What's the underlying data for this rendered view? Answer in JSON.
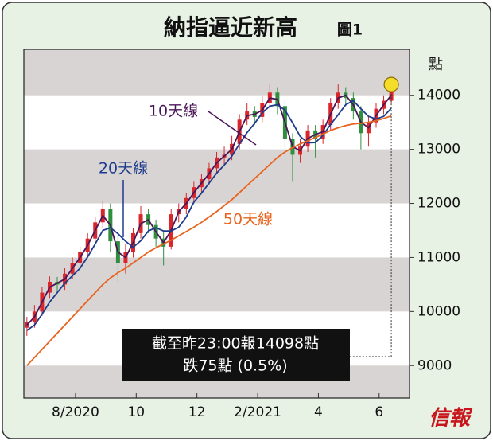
{
  "chart_data": {
    "type": "candlestick",
    "title": "納指逼近新高",
    "figure_label": "圖1",
    "y_unit": "點",
    "x": [
      6.4,
      6.65,
      6.9,
      7.15,
      7.4,
      7.65,
      7.9,
      8.15,
      8.4,
      8.65,
      8.9,
      9.15,
      9.4,
      9.65,
      9.9,
      10.15,
      10.4,
      10.65,
      10.9,
      11.15,
      11.4,
      11.65,
      11.9,
      12.15,
      12.4,
      12.65,
      12.9,
      13.15,
      13.4,
      13.65,
      13.9,
      14.15,
      14.4,
      14.65,
      14.9,
      15.15,
      15.4,
      15.65,
      15.9,
      16.15,
      16.4,
      16.65,
      16.9,
      17.15,
      17.4,
      17.65,
      17.9,
      18.15,
      18.4
    ],
    "open": [
      9700,
      9800,
      10000,
      10350,
      10550,
      10500,
      10700,
      10900,
      11100,
      11350,
      11650,
      11900,
      11300,
      10900,
      11100,
      11450,
      11800,
      11600,
      11350,
      11200,
      11800,
      11900,
      12100,
      12300,
      12450,
      12650,
      12850,
      12900,
      13100,
      13550,
      13700,
      13600,
      13850,
      14050,
      13800,
      13200,
      12900,
      13050,
      13350,
      13200,
      13450,
      13850,
      14050,
      13950,
      13700,
      13300,
      13500,
      13750,
      13900
    ],
    "high": [
      9900,
      10120,
      10450,
      10650,
      10640,
      10800,
      11000,
      11200,
      11450,
      11750,
      12050,
      12000,
      11400,
      11250,
      11550,
      11950,
      11900,
      11700,
      11500,
      11900,
      12000,
      12200,
      12400,
      12550,
      12750,
      12950,
      13050,
      13250,
      13650,
      13850,
      13800,
      14000,
      14200,
      14150,
      13900,
      13300,
      13200,
      13450,
      13450,
      13550,
      13950,
      14200,
      14150,
      14050,
      13800,
      13600,
      13850,
      14000,
      14200
    ],
    "low": [
      9550,
      9700,
      9920,
      10250,
      10350,
      10400,
      10600,
      10800,
      11000,
      11250,
      11550,
      11100,
      10550,
      10700,
      11000,
      11350,
      11450,
      11200,
      10850,
      11150,
      11650,
      11800,
      12000,
      12200,
      12350,
      12550,
      12700,
      12800,
      13000,
      13450,
      13450,
      13500,
      13750,
      13650,
      13000,
      12400,
      12750,
      12950,
      12850,
      13100,
      13350,
      13750,
      13800,
      13550,
      13000,
      13050,
      13400,
      13650,
      13850
    ],
    "close": [
      9800,
      10000,
      10350,
      10550,
      10500,
      10700,
      10900,
      11100,
      11350,
      11650,
      11900,
      11300,
      10900,
      11100,
      11450,
      11800,
      11600,
      11350,
      11200,
      11800,
      11900,
      12100,
      12300,
      12450,
      12650,
      12850,
      12900,
      13100,
      13550,
      13700,
      13600,
      13850,
      14050,
      13800,
      13200,
      12900,
      13050,
      13350,
      13200,
      13450,
      13850,
      14050,
      13950,
      13700,
      13300,
      13500,
      13750,
      13900,
      14100
    ],
    "up_color": "#d8262b",
    "down_color": "#2f8f3e",
    "series": [
      {
        "name": "10天線",
        "color": "#4a1658",
        "values": [
          9750,
          9900,
          10175,
          10450,
          10525,
          10600,
          10800,
          11000,
          11225,
          11500,
          11775,
          11600,
          11100,
          11000,
          11275,
          11625,
          11700,
          11475,
          11275,
          11500,
          11850,
          12000,
          12200,
          12375,
          12550,
          12750,
          12875,
          13000,
          13325,
          13625,
          13650,
          13725,
          13950,
          13925,
          13500,
          13050,
          12975,
          13200,
          13275,
          13325,
          13650,
          13950,
          14000,
          13825,
          13500,
          13400,
          13625,
          13825,
          14000
        ]
      },
      {
        "name": "20天線",
        "color": "#1d3c8c",
        "values": [
          9650,
          9750,
          9950,
          10175,
          10350,
          10525,
          10660,
          10800,
          11010,
          11250,
          11500,
          11550,
          11440,
          11300,
          11190,
          11310,
          11490,
          11550,
          11490,
          11490,
          11560,
          11750,
          12025,
          12190,
          12375,
          12560,
          12710,
          12875,
          13100,
          13310,
          13480,
          13675,
          13800,
          13825,
          13725,
          13490,
          13240,
          13120,
          13125,
          13260,
          13460,
          13640,
          13825,
          13900,
          13750,
          13610,
          13560,
          13610,
          13760
        ]
      },
      {
        "name": "50天線",
        "color": "#e8641e",
        "values": [
          9000,
          9150,
          9300,
          9450,
          9600,
          9750,
          9900,
          10050,
          10200,
          10350,
          10500,
          10620,
          10720,
          10800,
          10900,
          11000,
          11100,
          11180,
          11250,
          11320,
          11400,
          11480,
          11560,
          11650,
          11750,
          11850,
          11960,
          12070,
          12200,
          12330,
          12460,
          12590,
          12720,
          12850,
          12950,
          13030,
          13100,
          13160,
          13220,
          13280,
          13350,
          13400,
          13440,
          13470,
          13480,
          13500,
          13530,
          13570,
          13620
        ]
      }
    ],
    "annotation": [
      "截至昨23:00報14098點",
      "跌75點 (0.5%)"
    ],
    "logo": "信報",
    "xlim": [
      6.3,
      19.0
    ],
    "xticks": [
      {
        "value": 8,
        "label": "8/2020"
      },
      10,
      12,
      {
        "value": 14,
        "label": "2/2021"
      },
      {
        "value": 16,
        "label": "4"
      },
      {
        "value": 18,
        "label": "6"
      }
    ],
    "ylim": [
      8400,
      14850
    ],
    "yticks": [
      9000,
      10000,
      11000,
      12000,
      13000,
      14000
    ],
    "stripe_color": "#d9d4d4"
  }
}
